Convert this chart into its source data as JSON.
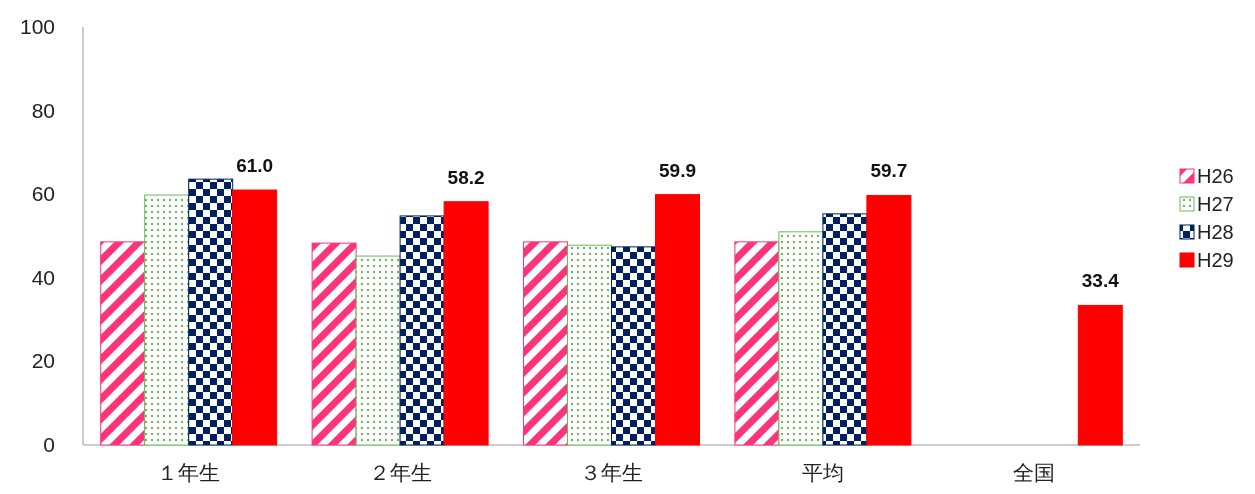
{
  "chart_data": {
    "type": "bar",
    "categories": [
      "１年生",
      "２年生",
      "３年生",
      "平均",
      "全国"
    ],
    "ylim": [
      0,
      100
    ],
    "yticks": [
      0,
      20,
      40,
      60,
      80,
      100
    ],
    "grid": false,
    "legend": "right",
    "series": [
      {
        "name": "H26",
        "color": "#ff3377",
        "values": [
          48.6,
          48.3,
          48.6,
          48.6,
          null
        ]
      },
      {
        "name": "H27",
        "color": "#66bb55",
        "values": [
          59.8,
          45.2,
          47.8,
          51.0,
          null
        ]
      },
      {
        "name": "H28",
        "color": "#002060",
        "values": [
          63.6,
          54.8,
          47.4,
          55.3,
          null
        ]
      },
      {
        "name": "H29",
        "color": "#ff0000",
        "values": [
          61.0,
          58.2,
          59.9,
          59.7,
          33.4
        ],
        "value_labels": [
          "61.0",
          "58.2",
          "59.9",
          "59.7",
          "33.4"
        ]
      }
    ]
  }
}
